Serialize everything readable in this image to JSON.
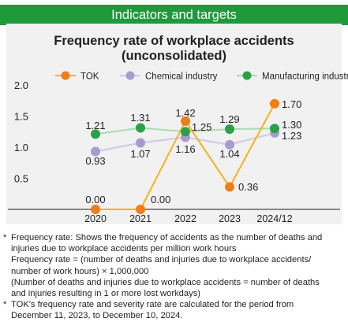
{
  "header": {
    "title": "Indicators and targets"
  },
  "chart_data": {
    "type": "line",
    "title": "Frequency rate of workplace accidents",
    "subtitle": "(unconsolidated)",
    "categories": [
      "2020",
      "2021",
      "2022",
      "2023",
      "2024/12"
    ],
    "ylim": [
      0,
      2.0
    ],
    "yticks": [
      "2.0",
      "1.5",
      "1.0",
      "0.5"
    ],
    "grid": false,
    "legend_position": "top",
    "series": [
      {
        "name": "TOK",
        "color": "#f5b21c",
        "marker_color": "#f07e16",
        "values": [
          0.0,
          0.0,
          1.42,
          0.36,
          1.7
        ],
        "labels": [
          "0.00",
          "0.00",
          "1.42",
          "0.36",
          "1.70"
        ]
      },
      {
        "name": "Chemical industry",
        "color": "#cfc9e6",
        "marker_color": "#a89ccf",
        "values": [
          0.93,
          1.07,
          1.16,
          1.04,
          1.23
        ],
        "labels": [
          "0.93",
          "1.07",
          "1.16",
          "1.04",
          "1.23"
        ]
      },
      {
        "name": "Manufacturing industry",
        "color": "#a9dcb0",
        "marker_color": "#2aa146",
        "values": [
          1.21,
          1.31,
          1.25,
          1.29,
          1.3
        ],
        "labels": [
          "1.21",
          "1.31",
          "1.25",
          "1.29",
          "1.30"
        ]
      }
    ]
  },
  "notes": [
    {
      "mark": "*",
      "lines": [
        "Frequency rate: Shows the frequency of accidents as the number of deaths and",
        "injuries due to workplace accidents per million work hours",
        "Frequency rate = (number of deaths and injuries due to workplace accidents/",
        "number of work hours) × 1,000,000",
        "(Number of deaths and injuries due to workplace accidents = number of deaths",
        "and injuries resulting in 1 or more lost workdays)"
      ]
    },
    {
      "mark": "*",
      "lines": [
        "TOK's frequency rate and severity rate are calculated for the period from",
        "December 11, 2023, to December 10, 2024."
      ]
    }
  ]
}
